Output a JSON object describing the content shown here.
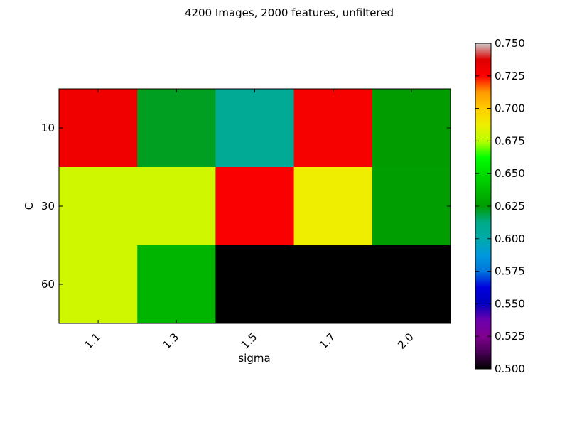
{
  "chart_data": {
    "type": "heatmap",
    "title": "4200 Images, 2000 features, unfiltered",
    "xlabel": "sigma",
    "ylabel": "C",
    "x_categories": [
      "1.1",
      "1.3",
      "1.5",
      "1.7",
      "2.0"
    ],
    "y_categories": [
      "10",
      "30",
      "60"
    ],
    "values": [
      [
        0.73,
        0.622,
        0.608,
        0.728,
        0.625
      ],
      [
        0.68,
        0.68,
        0.727,
        0.688,
        0.626
      ],
      [
        0.68,
        0.635,
        0.5,
        0.5,
        0.5
      ]
    ],
    "colorbar": {
      "min": 0.5,
      "max": 0.75,
      "ticks": [
        "0.500",
        "0.525",
        "0.550",
        "0.575",
        "0.600",
        "0.625",
        "0.650",
        "0.675",
        "0.700",
        "0.725",
        "0.750"
      ],
      "colormap": "nipy_spectral"
    },
    "x_tick_rotation": "45deg",
    "grid": false
  }
}
